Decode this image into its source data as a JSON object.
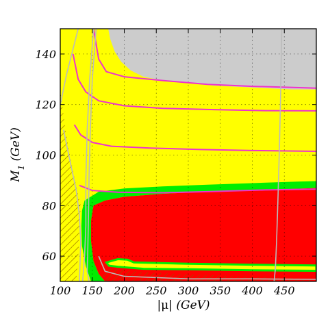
{
  "chart_data": {
    "type": "heatmap",
    "title": "",
    "xlabel": "|μ| (GeV)",
    "xlabel_parts": {
      "symbol": "|μ|",
      "unit": "(GeV)"
    },
    "ylabel": "M1 (GeV)",
    "ylabel_parts": {
      "symbol": "M",
      "subscript": "1",
      "unit": "(GeV)"
    },
    "xlim": [
      100,
      500
    ],
    "ylim": [
      50,
      150
    ],
    "xticks": [
      100,
      150,
      200,
      250,
      300,
      350,
      400,
      450
    ],
    "yticks": [
      60,
      80,
      100,
      120,
      140
    ],
    "grid": true,
    "colors": {
      "allowed_region": "#ffff00",
      "excluded_region": "#ff0000",
      "band": "#00ee00",
      "upper_region": "#cccccc",
      "magenta_contours": "#ee33cc",
      "grey_curves": "#bbbbbb",
      "hatch": "#8b5a00"
    },
    "regions": {
      "grey_top": [
        [
          150,
          150
        ],
        [
          500,
          150
        ],
        [
          500,
          126
        ],
        [
          460,
          126
        ],
        [
          420,
          126.5
        ],
        [
          380,
          127
        ],
        [
          340,
          127.5
        ],
        [
          300,
          128.5
        ],
        [
          260,
          129.5
        ],
        [
          230,
          131
        ],
        [
          210,
          133.5
        ],
        [
          195,
          137
        ],
        [
          185,
          141
        ],
        [
          178,
          146
        ],
        [
          175,
          150
        ]
      ],
      "red_main": [
        [
          152,
          80
        ],
        [
          170,
          82
        ],
        [
          200,
          83.5
        ],
        [
          260,
          84.7
        ],
        [
          330,
          85.5
        ],
        [
          400,
          86.1
        ],
        [
          470,
          86.7
        ],
        [
          500,
          87
        ],
        [
          500,
          50
        ],
        [
          170,
          50
        ],
        [
          160,
          53
        ],
        [
          152,
          58
        ],
        [
          148,
          66
        ],
        [
          148,
          74
        ]
      ],
      "red_hatched_bottom": [
        [
          165,
          50
        ],
        [
          500,
          50
        ],
        [
          500,
          51
        ],
        [
          450,
          51.5
        ],
        [
          380,
          52
        ],
        [
          300,
          52.8
        ],
        [
          240,
          53.5
        ],
        [
          200,
          54.5
        ],
        [
          180,
          55.5
        ],
        [
          168,
          53
        ]
      ],
      "yellow_strip": [
        [
          172,
          57.5
        ],
        [
          190,
          58.8
        ],
        [
          205,
          58.6
        ],
        [
          215,
          57.5
        ],
        [
          300,
          57
        ],
        [
          400,
          56.6
        ],
        [
          500,
          56.3
        ],
        [
          500,
          54.2
        ],
        [
          400,
          54.4
        ],
        [
          300,
          54.8
        ],
        [
          230,
          55
        ],
        [
          205,
          55.5
        ],
        [
          190,
          55.8
        ],
        [
          176,
          56.2
        ]
      ],
      "green_band": [
        [
          138,
          82
        ],
        [
          160,
          85.5
        ],
        [
          200,
          86.8
        ],
        [
          260,
          87.6
        ],
        [
          330,
          88.3
        ],
        [
          400,
          88.9
        ],
        [
          470,
          89.5
        ],
        [
          500,
          89.7
        ],
        [
          500,
          87
        ],
        [
          470,
          86.7
        ],
        [
          400,
          86.1
        ],
        [
          330,
          85.5
        ],
        [
          260,
          84.7
        ],
        [
          200,
          83.5
        ],
        [
          170,
          82
        ],
        [
          152,
          80
        ],
        [
          148,
          74
        ],
        [
          148,
          66
        ],
        [
          152,
          58
        ],
        [
          160,
          53
        ],
        [
          170,
          50
        ],
        [
          148,
          50
        ],
        [
          140,
          56
        ],
        [
          134,
          64
        ],
        [
          133,
          72
        ],
        [
          134,
          78
        ]
      ],
      "hatched_left_corner": [
        [
          100,
          50
        ],
        [
          100,
          126
        ],
        [
          107,
          112
        ],
        [
          115,
          100
        ],
        [
          123,
          90
        ],
        [
          132,
          80
        ],
        [
          130,
          70
        ],
        [
          128,
          60
        ],
        [
          125,
          50
        ]
      ]
    },
    "contours": [
      {
        "color": "magenta",
        "points": [
          [
            152,
            150
          ],
          [
            160,
            138
          ],
          [
            172,
            133
          ],
          [
            200,
            131
          ],
          [
            260,
            129.5
          ],
          [
            330,
            128
          ],
          [
            400,
            127.2
          ],
          [
            460,
            126.8
          ],
          [
            500,
            126.5
          ]
        ]
      },
      {
        "color": "magenta",
        "points": [
          [
            120,
            140
          ],
          [
            128,
            130
          ],
          [
            140,
            125
          ],
          [
            160,
            121.5
          ],
          [
            200,
            119.5
          ],
          [
            260,
            118.5
          ],
          [
            340,
            118
          ],
          [
            420,
            117.6
          ],
          [
            500,
            117.5
          ]
        ]
      },
      {
        "color": "magenta",
        "points": [
          [
            122,
            112
          ],
          [
            132,
            108
          ],
          [
            150,
            105
          ],
          [
            180,
            103.5
          ],
          [
            240,
            102.8
          ],
          [
            320,
            102.2
          ],
          [
            400,
            101.8
          ],
          [
            500,
            101.5
          ]
        ]
      },
      {
        "color": "magenta",
        "points": [
          [
            130,
            88
          ],
          [
            150,
            86
          ],
          [
            190,
            85.3
          ],
          [
            260,
            85.1
          ],
          [
            340,
            85.6
          ],
          [
            420,
            86.2
          ],
          [
            500,
            86.5
          ]
        ]
      },
      {
        "color": "grey",
        "points": [
          [
            100,
            120
          ],
          [
            110,
            132
          ],
          [
            120,
            142
          ],
          [
            128,
            150
          ]
        ]
      },
      {
        "color": "grey",
        "points": [
          [
            152,
            150
          ],
          [
            146,
            130
          ],
          [
            142,
            110
          ],
          [
            140,
            90
          ],
          [
            140,
            72
          ],
          [
            138,
            60
          ],
          [
            135,
            50
          ]
        ]
      },
      {
        "color": "grey",
        "points": [
          [
            156,
            150
          ],
          [
            150,
            130
          ],
          [
            147,
            110
          ],
          [
            145,
            92
          ],
          [
            144,
            74
          ],
          [
            143,
            62
          ],
          [
            142,
            54
          ],
          [
            145,
            50
          ]
        ]
      },
      {
        "color": "grey",
        "points": [
          [
            105,
            110
          ],
          [
            115,
            98
          ],
          [
            125,
            86
          ],
          [
            130,
            76
          ],
          [
            132,
            66
          ],
          [
            131,
            58
          ],
          [
            130,
            50
          ]
        ]
      },
      {
        "color": "grey",
        "points": [
          [
            160,
            60
          ],
          [
            170,
            54
          ],
          [
            200,
            52
          ],
          [
            300,
            51
          ],
          [
            400,
            51
          ],
          [
            500,
            50.8
          ]
        ]
      },
      {
        "color": "grey",
        "points": [
          [
            446,
            150
          ],
          [
            444,
            120
          ],
          [
            442,
            100
          ],
          [
            440,
            82
          ],
          [
            438,
            66
          ],
          [
            436,
            55
          ],
          [
            434,
            50
          ]
        ]
      }
    ]
  }
}
